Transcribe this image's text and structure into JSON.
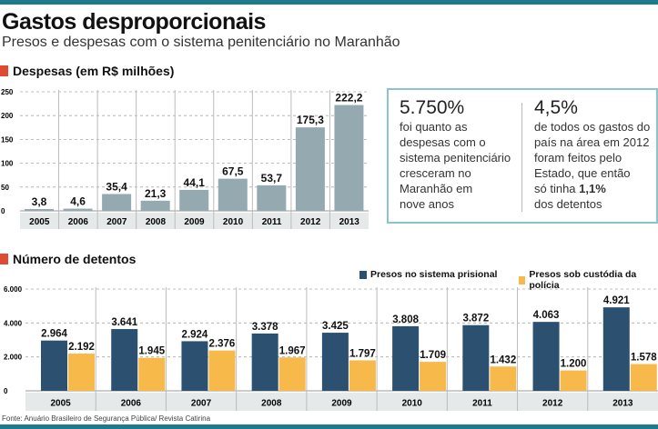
{
  "header": {
    "title": "Gastos desproporcionais",
    "subtitle": "Presos e despesas com o sistema penitenciário no Maranhão"
  },
  "colors": {
    "accent": "#1d7b8c",
    "section_marker": "#e04a32",
    "expense_bar": "#94a9b0",
    "prison": "#2b5070",
    "police": "#f6b94a"
  },
  "chart_data": [
    {
      "type": "bar",
      "title": "Despesas (em R$ milhões)",
      "categories": [
        "2005",
        "2006",
        "2007",
        "2008",
        "2009",
        "2010",
        "2011",
        "2012",
        "2013"
      ],
      "values": [
        3.8,
        4.6,
        35.4,
        21.3,
        44.1,
        67.5,
        53.7,
        175.3,
        222.2
      ],
      "value_labels": [
        "3,8",
        "4,6",
        "35,4",
        "21,3",
        "44,1",
        "67,5",
        "53,7",
        "175,3",
        "222,2"
      ],
      "yticks": [
        "0",
        "50",
        "100",
        "150",
        "200",
        "250"
      ],
      "ylim": [
        0,
        250
      ],
      "grid": true
    },
    {
      "type": "bar",
      "title": "Número de detentos",
      "categories": [
        "2005",
        "2006",
        "2007",
        "2008",
        "2009",
        "2010",
        "2011",
        "2012",
        "2013"
      ],
      "series": [
        {
          "name": "Presos no sistema prisional",
          "values": [
            2964,
            3641,
            2924,
            3378,
            3425,
            3808,
            3872,
            4063,
            4921
          ],
          "value_labels": [
            "2.964",
            "3.641",
            "2.924",
            "3.378",
            "3.425",
            "3.808",
            "3.872",
            "4.063",
            "4.921"
          ]
        },
        {
          "name": "Presos sob custódia da polícia",
          "values": [
            2192,
            1945,
            2376,
            1967,
            1797,
            1709,
            1432,
            1200,
            1578
          ],
          "value_labels": [
            "2.192",
            "1.945",
            "2.376",
            "1.967",
            "1.797",
            "1.709",
            "1.432",
            "1.200",
            "1.578"
          ]
        }
      ],
      "yticks": [
        "0",
        "2.000",
        "4.000",
        "6.000"
      ],
      "ylim": [
        0,
        6000
      ],
      "grid": true,
      "legend": "top-right"
    }
  ],
  "facts": {
    "left": {
      "value": "5.750%",
      "text": [
        "foi quanto as",
        "despesas com o",
        "sistema penitenciário",
        "cresceram no",
        "Maranhão em",
        "nove anos"
      ]
    },
    "right": {
      "value": "4,5%",
      "text_before": [
        "de todos os gastos do",
        "país na área em 2012",
        "foram feitos pelo",
        "Estado, que então"
      ],
      "line_prefix": "só tinha ",
      "highlight": "1,1%",
      "text_after": "dos detentos"
    }
  },
  "source": "Fonte: Anuário Brasileiro de Segurança Pública/ Revista Catirina"
}
